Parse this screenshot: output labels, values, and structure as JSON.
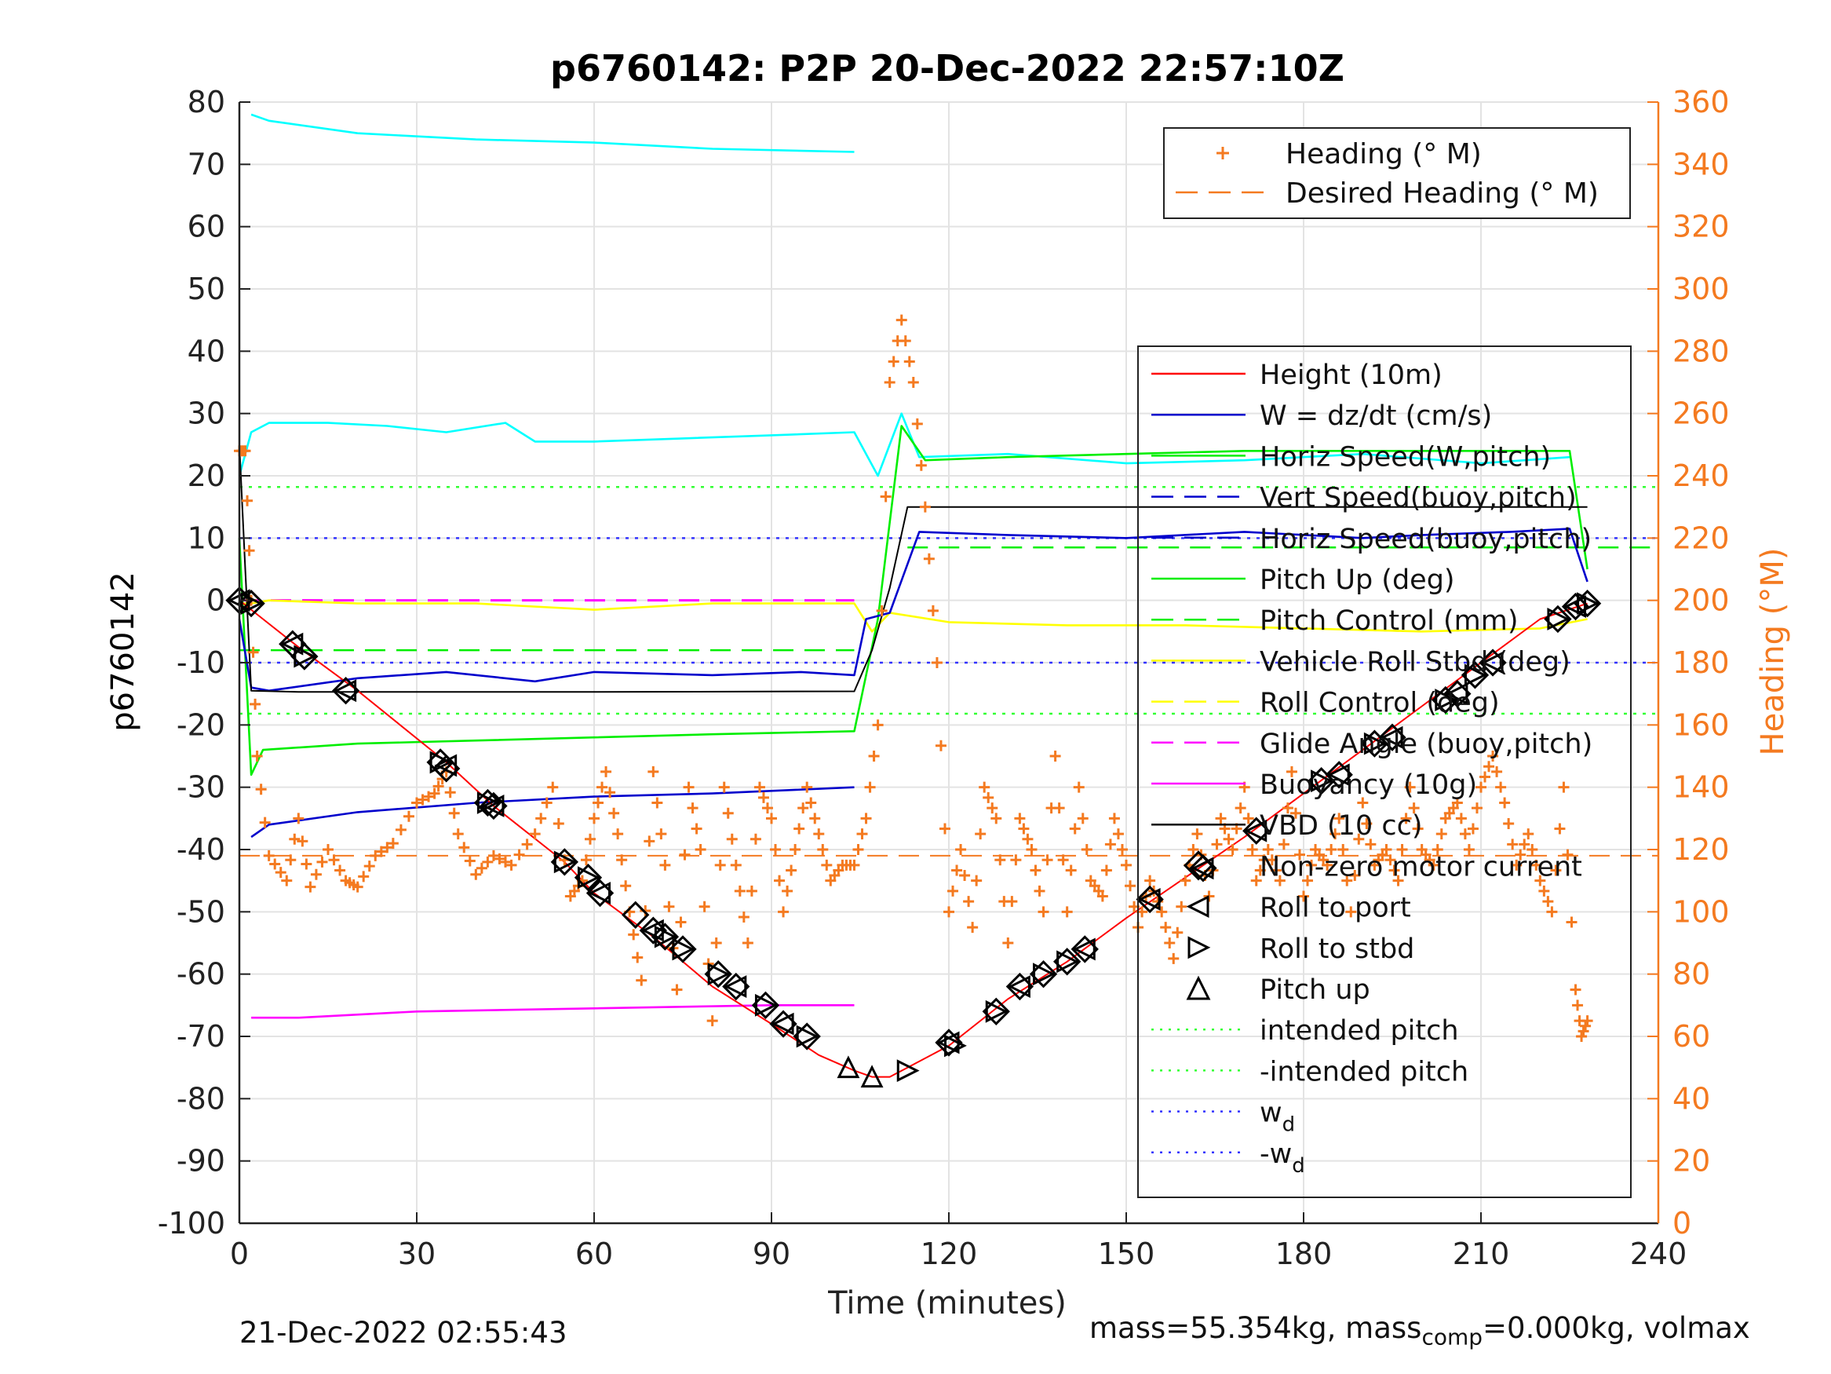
{
  "title": "p6760142: P2P 20-Dec-2022 22:57:10Z",
  "footer": {
    "timestamp": "21-Dec-2022 02:55:43",
    "mass_label": "mass=55.354kg, mass",
    "mass_sub": "comp",
    "mass_rest": "=0.000kg, volmax"
  },
  "chart_data": {
    "type": "line",
    "title": "p6760142: P2P 20-Dec-2022 22:57:10Z",
    "xlabel": "Time (minutes)",
    "ylabel": "p6760142",
    "y2label": "Heading (°M)",
    "xlim": [
      0,
      240
    ],
    "ylim": [
      -100,
      80
    ],
    "y2lim": [
      0,
      360
    ],
    "xticks": [
      "0",
      "30",
      "60",
      "90",
      "120",
      "150",
      "180",
      "210",
      "240"
    ],
    "yticks": [
      "80",
      "70",
      "60",
      "50",
      "40",
      "30",
      "20",
      "10",
      "0",
      "-10",
      "-20",
      "-30",
      "-40",
      "-50",
      "-60",
      "-70",
      "-80",
      "-90",
      "-100"
    ],
    "y2ticks": [
      "360",
      "340",
      "320",
      "300",
      "280",
      "260",
      "240",
      "220",
      "200",
      "180",
      "160",
      "140",
      "120",
      "100",
      "80",
      "60",
      "40",
      "20",
      "0"
    ],
    "grid": true,
    "colors": {
      "height": "#ff0000",
      "w": "#0000cc",
      "horiz_speed_w": "#00ffff",
      "pitch": "#00ee00",
      "roll": "#ffff00",
      "glide": "#ff00ff",
      "buoyancy": "#ff00ff",
      "vbd": "#000000",
      "heading": "#f47a20",
      "intended_pitch": "#33ff33",
      "wd": "#3333ff"
    },
    "legend_right": [
      {
        "name": "Heading (° M)",
        "style": "plus",
        "color": "#f47a20"
      },
      {
        "name": "Desired Heading (° M)",
        "style": "dash",
        "color": "#f47a20"
      }
    ],
    "legend_left": [
      {
        "name": "Height (10m)",
        "style": "solid",
        "color": "#ff0000"
      },
      {
        "name": "W = dz/dt (cm/s)",
        "style": "solid",
        "color": "#0000cc"
      },
      {
        "name": "Horiz Speed(W,pitch)",
        "style": "solid",
        "color": "#00ee00"
      },
      {
        "name": "Vert Speed(buoy,pitch)",
        "style": "dash",
        "color": "#0000cc"
      },
      {
        "name": "Horiz Speed(buoy,pitch)",
        "style": "dash",
        "color": "#0000cc"
      },
      {
        "name": "Pitch Up (deg)",
        "style": "solid",
        "color": "#00ee00"
      },
      {
        "name": "Pitch Control (mm)",
        "style": "dash",
        "color": "#00ee00"
      },
      {
        "name": "Vehicle Roll Stbd (deg)",
        "style": "solid",
        "color": "#ffff00"
      },
      {
        "name": "Roll Control (deg)",
        "style": "dash",
        "color": "#ffff00"
      },
      {
        "name": "Glide Angle (buoy,pitch)",
        "style": "dash",
        "color": "#ff00ff"
      },
      {
        "name": "Buoyancy (10g)",
        "style": "solid",
        "color": "#ff00ff"
      },
      {
        "name": "VBD (10 cc)",
        "style": "solid",
        "color": "#000000"
      },
      {
        "name": "Non-zero motor current",
        "style": "square",
        "color": "#000000"
      },
      {
        "name": "Roll to port",
        "style": "tri-left",
        "color": "#000000"
      },
      {
        "name": "Roll to stbd",
        "style": "tri-right",
        "color": "#000000"
      },
      {
        "name": "Pitch up",
        "style": "tri-up",
        "color": "#000000"
      },
      {
        "name": "intended pitch",
        "style": "dot",
        "color": "#33ff33"
      },
      {
        "name": "-intended pitch",
        "style": "dot",
        "color": "#33ff33"
      },
      {
        "name": "w",
        "sub": "d",
        "style": "dot",
        "color": "#3333ff"
      },
      {
        "name": "-w",
        "sub": "d",
        "style": "dot",
        "color": "#3333ff"
      }
    ],
    "series": [
      {
        "key": "height",
        "x": [
          0,
          2,
          10,
          20,
          35,
          43,
          55,
          60,
          70,
          80,
          90,
          98,
          104,
          107,
          110,
          113,
          120,
          130,
          140,
          150,
          160,
          170,
          180,
          190,
          200,
          210,
          220,
          228
        ],
        "y": [
          0,
          -1.5,
          -7.5,
          -14.5,
          -26,
          -33,
          -42,
          -47,
          -54,
          -62,
          -68,
          -73,
          -75.5,
          -76.5,
          -76.5,
          -75,
          -71.5,
          -64,
          -58,
          -51,
          -44.5,
          -38,
          -31,
          -24,
          -17,
          -10,
          -3,
          -0.5
        ]
      },
      {
        "key": "vbd",
        "x": [
          0,
          1,
          2,
          10,
          60,
          104,
          107,
          110,
          113,
          140,
          180,
          228
        ],
        "y": [
          25,
          5,
          -14.5,
          -14.7,
          -14.7,
          -14.6,
          -8,
          2,
          15,
          15,
          15,
          15
        ]
      },
      {
        "key": "w",
        "x": [
          0,
          2,
          5,
          20,
          35,
          50,
          60,
          80,
          95,
          104,
          106,
          110,
          115,
          130,
          150,
          170,
          190,
          200,
          215,
          225,
          228
        ],
        "y": [
          -3,
          -14,
          -14.5,
          -12.5,
          -11.5,
          -13,
          -11.5,
          -12,
          -11.5,
          -12,
          -3,
          -2,
          11,
          10.5,
          10,
          11,
          10,
          10.5,
          11,
          11.5,
          3
        ]
      },
      {
        "key": "horiz_speed_w",
        "x": [
          0,
          2,
          5,
          15,
          25,
          35,
          45,
          50,
          60,
          75,
          90,
          104,
          108,
          112,
          115,
          130,
          150,
          170,
          190,
          210,
          225
        ],
        "y": [
          20,
          27,
          28.5,
          28.5,
          28,
          27,
          28.5,
          25.5,
          25.5,
          26,
          26.5,
          27,
          20,
          30,
          23,
          23.5,
          22,
          22.5,
          23.5,
          22,
          23
        ]
      },
      {
        "key": "horiz_speed_w_upper",
        "x": [
          2,
          5,
          20,
          40,
          60,
          80,
          104
        ],
        "y": [
          78,
          77,
          75,
          74,
          73.5,
          72.5,
          72
        ]
      },
      {
        "key": "pitch",
        "x": [
          0,
          2,
          4,
          20,
          40,
          60,
          80,
          104,
          108,
          112,
          116,
          130,
          150,
          170,
          190,
          210,
          225,
          228
        ],
        "y": [
          10,
          -28,
          -24,
          -23,
          -22.5,
          -22,
          -21.5,
          -21,
          -3,
          28,
          22.5,
          23,
          23.5,
          24,
          24,
          24,
          24,
          5
        ]
      },
      {
        "key": "vert_speed_w",
        "x": [
          2,
          5,
          20,
          40,
          60,
          80,
          104
        ],
        "y": [
          -38,
          -36,
          -34,
          -32.5,
          -31.5,
          -31,
          -30
        ]
      },
      {
        "key": "buoyancy",
        "x": [
          2,
          10,
          30,
          60,
          90,
          104
        ],
        "y": [
          -67,
          -67,
          -66,
          -65.5,
          -65,
          -65
        ]
      },
      {
        "key": "roll",
        "x": [
          0,
          2,
          5,
          20,
          40,
          60,
          80,
          104,
          107,
          110,
          120,
          140,
          160,
          180,
          200,
          220,
          228
        ],
        "y": [
          -0.5,
          -0.5,
          0,
          -0.5,
          -0.5,
          -1.5,
          -0.5,
          -0.5,
          -5,
          -2,
          -3.5,
          -4,
          -4,
          -4.5,
          -5,
          -4.5,
          -3
        ]
      }
    ],
    "reference_lines": [
      {
        "key": "intended_pitch",
        "y": 18.2
      },
      {
        "key": "intended_pitch_neg",
        "y": -18.2
      },
      {
        "key": "wd",
        "y": 10
      },
      {
        "key": "wd_neg",
        "y": -10
      },
      {
        "key": "glide",
        "y": 0,
        "xmax": 104
      },
      {
        "key": "pitch_control",
        "y": -8,
        "xmax": 104
      },
      {
        "key": "pitch_control_up",
        "y": 8.5,
        "xmin": 113
      },
      {
        "key": "desired_heading",
        "y2": 118
      }
    ],
    "heading": {
      "x": [
        0,
        1,
        2,
        3,
        5,
        8,
        10,
        12,
        15,
        18,
        20,
        23,
        26,
        30,
        33,
        35,
        37,
        40,
        43,
        46,
        50,
        53,
        56,
        58,
        60,
        62,
        64,
        66,
        68,
        70,
        72,
        74,
        76,
        78,
        80,
        82,
        84,
        86,
        88,
        90,
        92,
        94,
        96,
        98,
        100,
        102,
        104,
        106,
        108,
        110,
        112,
        114,
        116,
        118,
        120,
        122,
        124,
        126,
        128,
        130,
        132,
        134,
        136,
        138,
        140,
        142,
        144,
        146,
        148,
        150,
        152,
        154,
        156,
        158,
        160,
        162,
        164,
        166,
        168,
        170,
        172,
        174,
        176,
        178,
        180,
        182,
        184,
        186,
        188,
        190,
        192,
        194,
        196,
        198,
        200,
        202,
        204,
        206,
        208,
        210,
        212,
        214,
        216,
        218,
        220,
        222,
        224,
        226,
        227,
        228
      ],
      "y": [
        248,
        248,
        200,
        150,
        118,
        110,
        130,
        108,
        120,
        110,
        108,
        118,
        122,
        135,
        138,
        145,
        125,
        112,
        118,
        115,
        125,
        140,
        105,
        110,
        130,
        145,
        125,
        100,
        78,
        145,
        115,
        75,
        140,
        120,
        65,
        140,
        115,
        90,
        140,
        130,
        100,
        120,
        140,
        125,
        110,
        115,
        115,
        130,
        160,
        270,
        290,
        270,
        230,
        180,
        100,
        120,
        95,
        140,
        130,
        90,
        130,
        120,
        100,
        150,
        100,
        140,
        110,
        105,
        130,
        115,
        95,
        110,
        100,
        85,
        110,
        125,
        105,
        130,
        120,
        140,
        110,
        120,
        110,
        145,
        105,
        120,
        115,
        130,
        100,
        135,
        115,
        120,
        110,
        140,
        120,
        115,
        130,
        135,
        120,
        140,
        150,
        135,
        115,
        125,
        110,
        100,
        140,
        75,
        60,
        65
      ]
    },
    "markers": {
      "square": [
        [
          0,
          0
        ],
        [
          2,
          -0.5
        ],
        [
          9,
          -7
        ],
        [
          11,
          -9
        ],
        [
          18,
          -14.5
        ],
        [
          34,
          -26
        ],
        [
          35,
          -27
        ],
        [
          42,
          -32.5
        ],
        [
          43,
          -33
        ],
        [
          55,
          -42
        ],
        [
          59,
          -44.5
        ],
        [
          61,
          -47
        ],
        [
          67,
          -50.5
        ],
        [
          70,
          -53
        ],
        [
          72,
          -54
        ],
        [
          75,
          -56
        ],
        [
          81,
          -60
        ],
        [
          84,
          -62
        ],
        [
          89,
          -65
        ],
        [
          92,
          -68
        ],
        [
          96,
          -70
        ],
        [
          120,
          -71
        ],
        [
          128,
          -66
        ],
        [
          132,
          -62
        ],
        [
          136,
          -60
        ],
        [
          140,
          -58
        ],
        [
          143,
          -56
        ],
        [
          154,
          -48
        ],
        [
          163,
          -43
        ],
        [
          172,
          -37
        ],
        [
          183,
          -29
        ],
        [
          186,
          -28
        ],
        [
          192,
          -23
        ],
        [
          195,
          -22
        ],
        [
          204,
          -16
        ],
        [
          206,
          -15
        ],
        [
          209,
          -12
        ],
        [
          212,
          -10
        ],
        [
          223,
          -3
        ],
        [
          226,
          -1
        ],
        [
          228,
          -0.5
        ]
      ],
      "tri_left": [
        [
          0,
          0
        ],
        [
          9,
          -7
        ],
        [
          18,
          -14.5
        ],
        [
          35,
          -26.5
        ],
        [
          43,
          -33
        ],
        [
          61,
          -47
        ],
        [
          70,
          -53
        ],
        [
          84,
          -62
        ],
        [
          92,
          -68
        ],
        [
          120,
          -71
        ],
        [
          132,
          -62
        ],
        [
          143,
          -56
        ],
        [
          154,
          -48
        ],
        [
          163,
          -43
        ],
        [
          172,
          -37
        ],
        [
          186,
          -28
        ],
        [
          195,
          -22
        ],
        [
          206,
          -15
        ],
        [
          212,
          -10
        ],
        [
          226,
          -1
        ]
      ],
      "tri_right": [
        [
          2,
          -0.5
        ],
        [
          11,
          -9
        ],
        [
          34,
          -26
        ],
        [
          42,
          -32.5
        ],
        [
          55,
          -42
        ],
        [
          59,
          -44.5
        ],
        [
          72,
          -54
        ],
        [
          75,
          -56
        ],
        [
          81,
          -60
        ],
        [
          89,
          -65
        ],
        [
          96,
          -70
        ],
        [
          113,
          -75.5
        ],
        [
          121,
          -71.5
        ],
        [
          128,
          -66
        ],
        [
          136,
          -60
        ],
        [
          140,
          -58
        ],
        [
          183,
          -29
        ],
        [
          192,
          -23
        ],
        [
          204,
          -16
        ],
        [
          209,
          -12
        ],
        [
          223,
          -3
        ],
        [
          228,
          -0.5
        ]
      ],
      "tri_up": [
        [
          103,
          -75
        ],
        [
          107,
          -76.5
        ]
      ]
    }
  }
}
